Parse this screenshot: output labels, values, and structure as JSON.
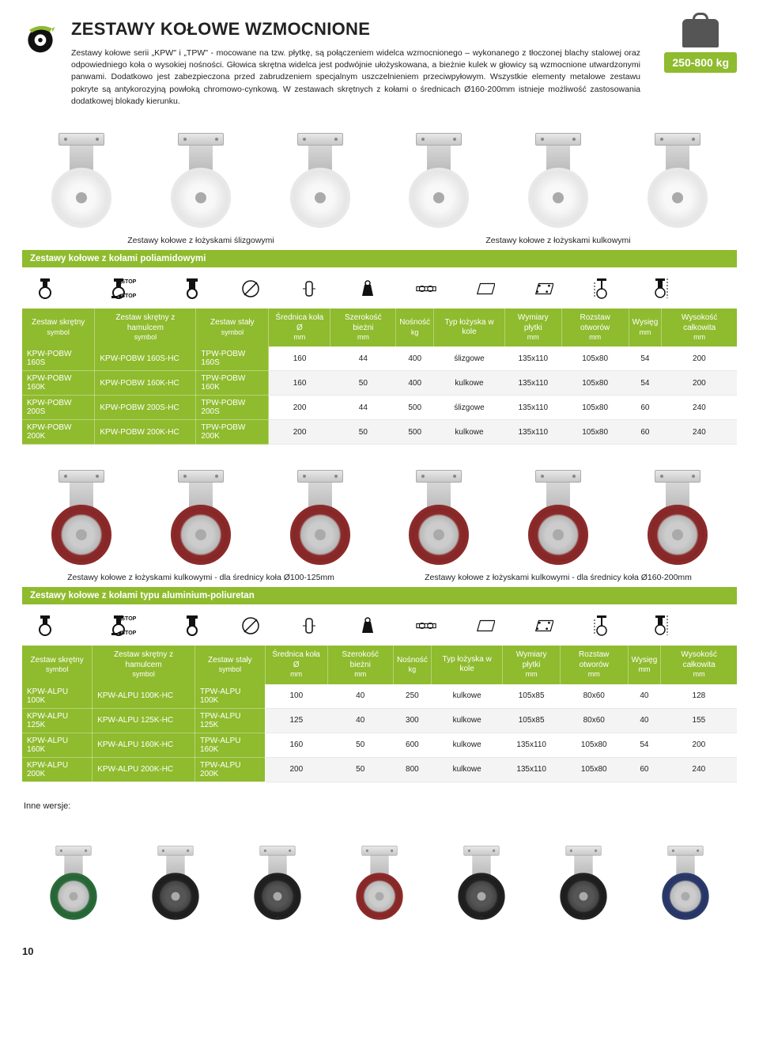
{
  "title": "ZESTAWY KOŁOWE WZMOCNIONE",
  "intro": "Zestawy kołowe serii „KPW\" i „TPW\" - mocowane na tzw. płytkę, są połączeniem widelca wzmocnionego – wykonanego z tłoczonej blachy stalowej oraz odpowiedniego koła o wysokiej nośności. Głowica skrętna widelca jest podwójnie ułożyskowana, a bieżnie kulek w głowicy są wzmocnione utwardzonymi panwami. Dodatkowo jest zabezpieczona przed zabrudzeniem specjalnym uszczelnieniem przeciwpyłowym. Wszystkie elementy metalowe zestawu pokryte są antykorozyjną powłoką chromowo-cynkową. W zestawach skrętnych z kołami o średnicach Ø160-200mm istnieje możliwość zastosowania dodatkowej blokady kierunku.",
  "badge": "250-800 kg",
  "cap1_left": "Zestawy kołowe z łożyskami ślizgowymi",
  "cap1_right": "Zestawy kołowe z łożyskami kulkowymi",
  "section1": "Zestawy kołowe z kołami poliamidowymi",
  "cap2_left": "Zestawy kołowe z łożyskami kulkowymi - dla średnicy koła Ø100-125mm",
  "cap2_right": "Zestawy kołowe z łożyskami kulkowymi - dla średnicy koła Ø160-200mm",
  "section2": "Zestawy kołowe z kołami typu aluminium-poliuretan",
  "stop": "STOP",
  "headers": {
    "c1": "Zestaw skrętny",
    "c1s": "symbol",
    "c2": "Zestaw skrętny z hamulcem",
    "c2s": "symbol",
    "c3": "Zestaw stały",
    "c3s": "symbol",
    "c4": "Średnica koła Ø",
    "c4s": "mm",
    "c5": "Szerokość bieżni",
    "c5s": "mm",
    "c6": "Nośność",
    "c6s": "kg",
    "c7": "Typ łożyska w kole",
    "c8": "Wymiary płytki",
    "c8s": "mm",
    "c9": "Rozstaw otworów",
    "c9s": "mm",
    "c10": "Wysięg",
    "c10s": "mm",
    "c11": "Wysokość całkowita",
    "c11s": "mm"
  },
  "table1": [
    [
      "KPW-POBW 160S",
      "KPW-POBW 160S-HC",
      "TPW-POBW 160S",
      "160",
      "44",
      "400",
      "ślizgowe",
      "135x110",
      "105x80",
      "54",
      "200"
    ],
    [
      "KPW-POBW 160K",
      "KPW-POBW 160K-HC",
      "TPW-POBW 160K",
      "160",
      "50",
      "400",
      "kulkowe",
      "135x110",
      "105x80",
      "54",
      "200"
    ],
    [
      "KPW-POBW 200S",
      "KPW-POBW 200S-HC",
      "TPW-POBW 200S",
      "200",
      "44",
      "500",
      "ślizgowe",
      "135x110",
      "105x80",
      "60",
      "240"
    ],
    [
      "KPW-POBW 200K",
      "KPW-POBW 200K-HC",
      "TPW-POBW 200K",
      "200",
      "50",
      "500",
      "kulkowe",
      "135x110",
      "105x80",
      "60",
      "240"
    ]
  ],
  "table2": [
    [
      "KPW-ALPU 100K",
      "KPW-ALPU 100K-HC",
      "TPW-ALPU 100K",
      "100",
      "40",
      "250",
      "kulkowe",
      "105x85",
      "80x60",
      "40",
      "128"
    ],
    [
      "KPW-ALPU 125K",
      "KPW-ALPU 125K-HC",
      "TPW-ALPU 125K",
      "125",
      "40",
      "300",
      "kulkowe",
      "105x85",
      "80x60",
      "40",
      "155"
    ],
    [
      "KPW-ALPU 160K",
      "KPW-ALPU 160K-HC",
      "TPW-ALPU 160K",
      "160",
      "50",
      "600",
      "kulkowe",
      "135x110",
      "105x80",
      "54",
      "200"
    ],
    [
      "KPW-ALPU 200K",
      "KPW-ALPU 200K-HC",
      "TPW-ALPU 200K",
      "200",
      "50",
      "800",
      "kulkowe",
      "135x110",
      "105x80",
      "60",
      "240"
    ]
  ],
  "inne": "Inne wersje:",
  "page": "10",
  "accent": "#8fbb2e"
}
